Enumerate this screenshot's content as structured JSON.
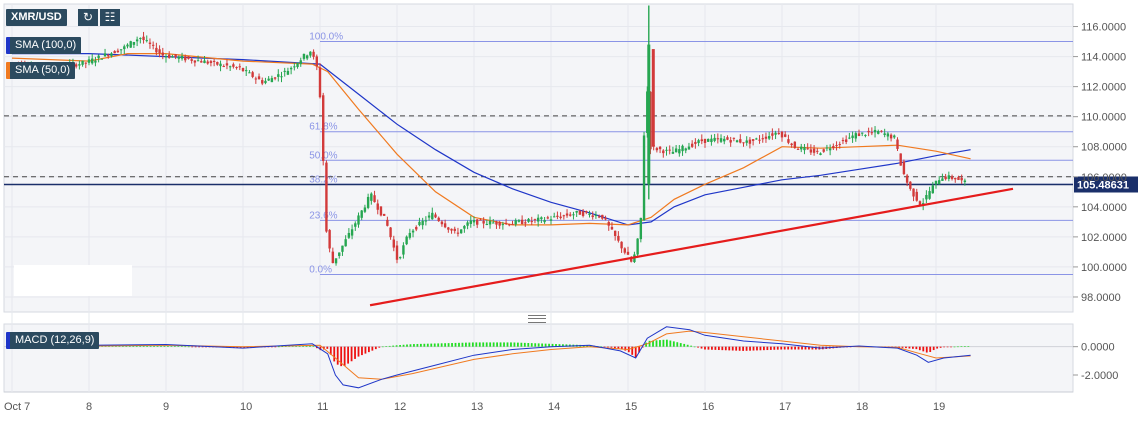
{
  "symbol": "XMR/USD",
  "toolbar": {
    "refresh_icon": "refresh-icon",
    "indicators_icon": "indicators-icon"
  },
  "indicators": {
    "sma100": "SMA (100,0)",
    "sma50": "SMA (50,0)",
    "macd": "MACD (12,26,9)"
  },
  "colors": {
    "sma100": "#1f36c8",
    "sma50": "#f07a20",
    "bull": "#26a651",
    "bear": "#d23a3a",
    "trendline": "#e51c1c",
    "fib": "#8a94e6",
    "price_line": "#1a2f6a",
    "macd_pos": "#22dd22",
    "macd_neg": "#ee1111"
  },
  "chart_data": [
    {
      "type": "candlestick",
      "title": "XMR/USD",
      "x_tick_labels": [
        "Oct 7",
        "8",
        "9",
        "10",
        "11",
        "12",
        "13",
        "14",
        "15",
        "16",
        "17",
        "18",
        "19"
      ],
      "y_tick_labels": [
        "116.0000",
        "114.0000",
        "112.0000",
        "110.0000",
        "108.0000",
        "106.0000",
        "104.0000",
        "102.0000",
        "100.0000",
        "98.0000"
      ],
      "ylim": [
        97,
        117.5
      ],
      "current_price": "105.48631",
      "fibonacci": [
        {
          "label": "100.0%",
          "value": 115.0
        },
        {
          "label": "61.8%",
          "value": 109.0
        },
        {
          "label": "50.0%",
          "value": 107.1
        },
        {
          "label": "38.2%",
          "value": 105.5
        },
        {
          "label": "23.6%",
          "value": 103.1
        },
        {
          "label": "0.0%",
          "value": 99.5
        }
      ],
      "horizontal_levels": [
        110.05,
        106.0
      ],
      "trendline": {
        "from": [
          11.65,
          97.45
        ],
        "to": [
          20.0,
          105.2
        ]
      },
      "key_prices": [
        [
          7.0,
          113.6
        ],
        [
          7.5,
          113.2
        ],
        [
          8.0,
          113.6
        ],
        [
          8.5,
          114.6
        ],
        [
          8.7,
          115.3
        ],
        [
          9.0,
          114.1
        ],
        [
          9.5,
          113.7
        ],
        [
          10.0,
          113.2
        ],
        [
          10.3,
          112.3
        ],
        [
          10.6,
          113.0
        ],
        [
          10.92,
          114.4
        ],
        [
          11.0,
          113.3
        ],
        [
          11.05,
          111.0
        ],
        [
          11.08,
          107.5
        ],
        [
          11.12,
          102.5
        ],
        [
          11.2,
          100.2
        ],
        [
          11.4,
          102.0
        ],
        [
          11.7,
          104.8
        ],
        [
          11.9,
          103.0
        ],
        [
          12.05,
          100.4
        ],
        [
          12.2,
          102.3
        ],
        [
          12.5,
          103.5
        ],
        [
          12.8,
          102.2
        ],
        [
          13.0,
          103.0
        ],
        [
          13.5,
          102.9
        ],
        [
          14.0,
          103.2
        ],
        [
          14.4,
          103.6
        ],
        [
          14.7,
          103.4
        ],
        [
          14.9,
          101.8
        ],
        [
          15.1,
          100.2
        ],
        [
          15.2,
          102.5
        ],
        [
          15.24,
          106.0
        ],
        [
          15.27,
          114.5
        ],
        [
          15.32,
          108.0
        ],
        [
          15.6,
          107.6
        ],
        [
          16.0,
          108.4
        ],
        [
          16.3,
          108.5
        ],
        [
          16.6,
          108.3
        ],
        [
          16.8,
          108.6
        ],
        [
          17.0,
          109.0
        ],
        [
          17.2,
          108.0
        ],
        [
          17.5,
          107.6
        ],
        [
          17.8,
          108.3
        ],
        [
          18.0,
          108.8
        ],
        [
          18.3,
          109.0
        ],
        [
          18.5,
          108.6
        ],
        [
          18.6,
          106.5
        ],
        [
          18.7,
          105.2
        ],
        [
          18.85,
          104.1
        ],
        [
          18.95,
          105.0
        ],
        [
          19.1,
          106.0
        ],
        [
          19.3,
          105.9
        ],
        [
          19.45,
          105.5
        ]
      ],
      "sma50_line": [
        [
          7.0,
          113.9
        ],
        [
          8.0,
          113.7
        ],
        [
          8.5,
          114.2
        ],
        [
          9.0,
          114.2
        ],
        [
          10.0,
          113.7
        ],
        [
          10.9,
          113.5
        ],
        [
          11.1,
          113.0
        ],
        [
          11.5,
          110.5
        ],
        [
          12.0,
          107.5
        ],
        [
          12.5,
          105.0
        ],
        [
          13.0,
          103.3
        ],
        [
          13.5,
          102.8
        ],
        [
          14.0,
          102.8
        ],
        [
          14.5,
          102.9
        ],
        [
          15.0,
          102.8
        ],
        [
          15.3,
          103.3
        ],
        [
          15.6,
          104.5
        ],
        [
          16.0,
          105.5
        ],
        [
          16.5,
          106.6
        ],
        [
          17.0,
          108.0
        ],
        [
          17.5,
          107.9
        ],
        [
          18.0,
          108.0
        ],
        [
          18.5,
          108.1
        ],
        [
          19.0,
          107.7
        ],
        [
          19.45,
          107.2
        ]
      ],
      "sma100_line": [
        [
          7.0,
          114.2
        ],
        [
          8.0,
          114.2
        ],
        [
          9.0,
          114.0
        ],
        [
          10.0,
          113.8
        ],
        [
          11.0,
          113.5
        ],
        [
          11.5,
          111.5
        ],
        [
          12.0,
          109.5
        ],
        [
          12.5,
          107.8
        ],
        [
          13.0,
          106.3
        ],
        [
          13.5,
          105.2
        ],
        [
          14.0,
          104.3
        ],
        [
          14.5,
          103.6
        ],
        [
          15.0,
          102.8
        ],
        [
          15.3,
          103.0
        ],
        [
          15.6,
          104.0
        ],
        [
          16.0,
          104.8
        ],
        [
          16.5,
          105.3
        ],
        [
          17.0,
          105.8
        ],
        [
          17.5,
          106.1
        ],
        [
          18.0,
          106.5
        ],
        [
          18.5,
          106.9
        ],
        [
          19.0,
          107.4
        ],
        [
          19.45,
          107.8
        ]
      ]
    },
    {
      "type": "macd",
      "title": "MACD (12,26,9)",
      "y_tick_labels": [
        "0.0000",
        "-2.0000"
      ],
      "ylim": [
        -3.2,
        1.6
      ],
      "macd_line": [
        [
          7.0,
          0.0
        ],
        [
          8.0,
          0.1
        ],
        [
          9.0,
          0.15
        ],
        [
          10.0,
          -0.1
        ],
        [
          10.9,
          0.2
        ],
        [
          11.1,
          -0.5
        ],
        [
          11.2,
          -2.0
        ],
        [
          11.3,
          -2.7
        ],
        [
          11.5,
          -2.9
        ],
        [
          11.8,
          -2.3
        ],
        [
          12.0,
          -2.0
        ],
        [
          12.5,
          -1.3
        ],
        [
          13.0,
          -0.6
        ],
        [
          13.5,
          -0.2
        ],
        [
          14.0,
          0.0
        ],
        [
          14.5,
          0.1
        ],
        [
          14.9,
          -0.3
        ],
        [
          15.1,
          -0.8
        ],
        [
          15.25,
          0.6
        ],
        [
          15.5,
          1.4
        ],
        [
          15.8,
          1.2
        ],
        [
          16.0,
          0.8
        ],
        [
          16.5,
          0.4
        ],
        [
          17.0,
          0.2
        ],
        [
          17.5,
          -0.1
        ],
        [
          18.0,
          0.05
        ],
        [
          18.5,
          -0.1
        ],
        [
          18.75,
          -0.6
        ],
        [
          18.9,
          -1.1
        ],
        [
          19.1,
          -0.8
        ],
        [
          19.45,
          -0.6
        ]
      ],
      "signal_line": [
        [
          7.0,
          0.0
        ],
        [
          8.0,
          0.05
        ],
        [
          9.0,
          0.1
        ],
        [
          10.0,
          0.0
        ],
        [
          11.0,
          0.1
        ],
        [
          11.2,
          -0.8
        ],
        [
          11.5,
          -2.2
        ],
        [
          11.8,
          -2.3
        ],
        [
          12.2,
          -1.9
        ],
        [
          12.6,
          -1.4
        ],
        [
          13.0,
          -0.9
        ],
        [
          13.5,
          -0.5
        ],
        [
          14.0,
          -0.2
        ],
        [
          14.5,
          0.0
        ],
        [
          15.0,
          -0.2
        ],
        [
          15.25,
          0.2
        ],
        [
          15.5,
          0.9
        ],
        [
          15.8,
          1.1
        ],
        [
          16.0,
          1.0
        ],
        [
          16.5,
          0.7
        ],
        [
          17.0,
          0.4
        ],
        [
          17.5,
          0.1
        ],
        [
          18.0,
          0.0
        ],
        [
          18.5,
          -0.05
        ],
        [
          18.8,
          -0.5
        ],
        [
          19.0,
          -0.8
        ],
        [
          19.45,
          -0.65
        ]
      ]
    }
  ]
}
